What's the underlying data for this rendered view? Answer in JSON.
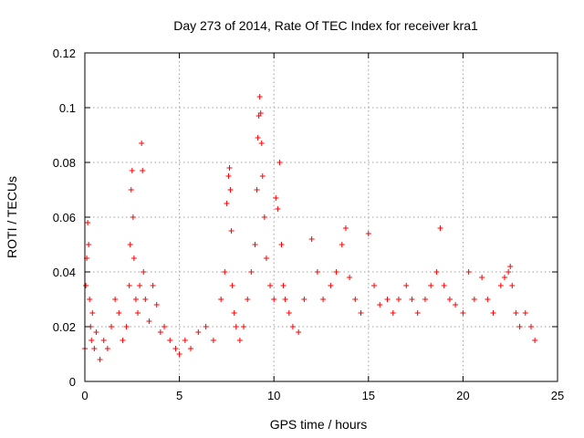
{
  "chart_data": {
    "type": "scatter",
    "title": "Day 273 of 2014, Rate Of TEC Index for receiver kra1",
    "xlabel": "GPS time / hours",
    "ylabel": "ROTI / TECUs",
    "xlim": [
      0,
      25
    ],
    "ylim": [
      0,
      0.12
    ],
    "xticks": [
      0,
      5,
      10,
      15,
      20,
      25
    ],
    "xtick_labels": [
      "0",
      "5",
      "10",
      "15",
      "20",
      "25"
    ],
    "yticks": [
      0,
      0.02,
      0.04,
      0.06,
      0.08,
      0.1,
      0.12
    ],
    "ytick_labels": [
      "0",
      "0.02",
      "0.04",
      "0.06",
      "0.08",
      "0.1",
      "0.12"
    ],
    "grid": true,
    "marker": "plus",
    "series_color": "#ff0000",
    "series": [
      {
        "name": "kra1 ROTI",
        "x": [
          0.0,
          0.05,
          0.1,
          0.15,
          0.2,
          0.25,
          0.3,
          0.35,
          0.4,
          0.5,
          0.6,
          0.8,
          1.0,
          1.2,
          1.4,
          1.6,
          1.8,
          2.0,
          2.2,
          2.35,
          2.4,
          2.45,
          2.5,
          2.55,
          2.6,
          2.7,
          2.8,
          2.9,
          3.0,
          3.05,
          3.1,
          3.2,
          3.4,
          3.6,
          3.8,
          4.0,
          4.2,
          4.5,
          4.8,
          5.0,
          5.3,
          5.6,
          6.0,
          6.4,
          6.8,
          7.2,
          7.4,
          7.5,
          7.6,
          7.65,
          7.7,
          7.75,
          7.8,
          7.9,
          8.0,
          8.2,
          8.4,
          8.6,
          8.8,
          9.0,
          9.1,
          9.15,
          9.2,
          9.25,
          9.3,
          9.35,
          9.4,
          9.5,
          9.6,
          9.8,
          10.0,
          10.1,
          10.2,
          10.3,
          10.4,
          10.5,
          10.6,
          10.8,
          11.0,
          11.3,
          11.6,
          12.0,
          12.3,
          12.6,
          13.0,
          13.3,
          13.6,
          13.8,
          14.0,
          14.3,
          14.6,
          15.0,
          15.3,
          15.6,
          16.0,
          16.3,
          16.6,
          17.0,
          17.3,
          17.6,
          18.0,
          18.3,
          18.6,
          18.8,
          19.0,
          19.3,
          19.6,
          20.0,
          20.3,
          20.6,
          21.0,
          21.3,
          21.6,
          22.0,
          22.2,
          22.4,
          22.5,
          22.6,
          22.8,
          23.0,
          23.3,
          23.6,
          23.8
        ],
        "y": [
          0.012,
          0.035,
          0.045,
          0.058,
          0.05,
          0.03,
          0.02,
          0.015,
          0.025,
          0.012,
          0.018,
          0.008,
          0.015,
          0.012,
          0.02,
          0.03,
          0.025,
          0.015,
          0.02,
          0.035,
          0.05,
          0.07,
          0.077,
          0.06,
          0.045,
          0.03,
          0.025,
          0.035,
          0.087,
          0.077,
          0.04,
          0.03,
          0.022,
          0.035,
          0.028,
          0.018,
          0.02,
          0.015,
          0.012,
          0.01,
          0.015,
          0.012,
          0.018,
          0.02,
          0.015,
          0.03,
          0.04,
          0.065,
          0.075,
          0.078,
          0.07,
          0.055,
          0.035,
          0.025,
          0.02,
          0.015,
          0.02,
          0.03,
          0.04,
          0.05,
          0.07,
          0.089,
          0.097,
          0.104,
          0.098,
          0.087,
          0.075,
          0.06,
          0.045,
          0.035,
          0.03,
          0.067,
          0.063,
          0.08,
          0.05,
          0.035,
          0.03,
          0.025,
          0.02,
          0.018,
          0.03,
          0.052,
          0.04,
          0.03,
          0.035,
          0.04,
          0.05,
          0.056,
          0.038,
          0.03,
          0.025,
          0.054,
          0.035,
          0.028,
          0.03,
          0.025,
          0.03,
          0.035,
          0.03,
          0.025,
          0.03,
          0.035,
          0.04,
          0.056,
          0.035,
          0.03,
          0.028,
          0.025,
          0.04,
          0.03,
          0.038,
          0.03,
          0.025,
          0.035,
          0.038,
          0.04,
          0.042,
          0.035,
          0.025,
          0.02,
          0.025,
          0.02,
          0.015
        ]
      }
    ]
  }
}
